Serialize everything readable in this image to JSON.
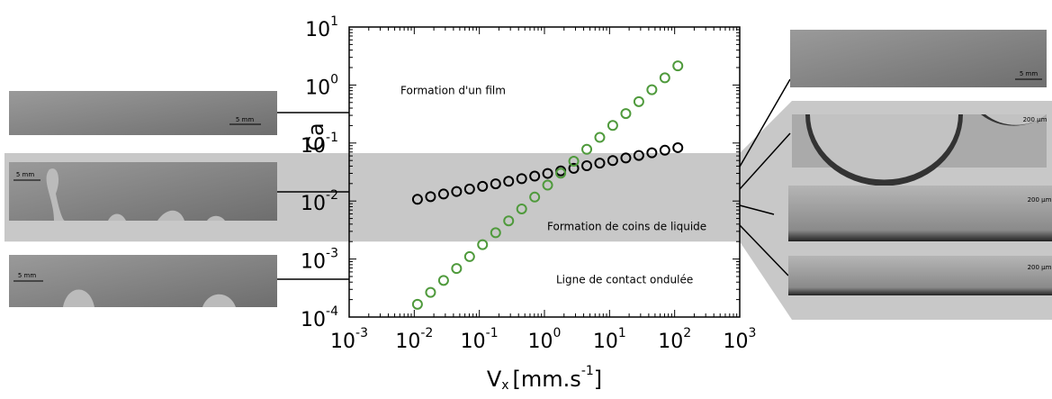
{
  "chart_data": {
    "type": "scatter",
    "xlabel": {
      "main": "V",
      "sub": "x",
      "unit": "[mm.s",
      "sup": "-1",
      "close": "]"
    },
    "ylabel": "Ca",
    "xlog": true,
    "ylog": true,
    "xlim": [
      0.001,
      1000
    ],
    "ylim": [
      0.0001,
      10
    ],
    "xticks": [
      {
        "value": 0.001,
        "label": "10",
        "exp": "-3"
      },
      {
        "value": 0.01,
        "label": "10",
        "exp": "-2"
      },
      {
        "value": 0.1,
        "label": "10",
        "exp": "-1"
      },
      {
        "value": 1,
        "label": "10",
        "exp": "0"
      },
      {
        "value": 10,
        "label": "10",
        "exp": "1"
      },
      {
        "value": 100,
        "label": "10",
        "exp": "2"
      },
      {
        "value": 1000,
        "label": "10",
        "exp": "3"
      }
    ],
    "yticks": [
      {
        "value": 0.0001,
        "label": "10",
        "exp": "-4"
      },
      {
        "value": 0.001,
        "label": "10",
        "exp": "-3"
      },
      {
        "value": 0.01,
        "label": "10",
        "exp": "-2"
      },
      {
        "value": 0.1,
        "label": "10",
        "exp": "-1"
      },
      {
        "value": 1,
        "label": "10",
        "exp": "0"
      },
      {
        "value": 10,
        "label": "10",
        "exp": "1"
      }
    ],
    "band": {
      "ymin": 0.002,
      "ymax": 0.067,
      "color": "#c8c8c8"
    },
    "annotations": [
      "Formation d'un film",
      "Formation de coins de liquide",
      "Ligne de contact ondulée"
    ],
    "x": [
      0.0112,
      0.0178,
      0.0282,
      0.0447,
      0.0708,
      0.112,
      0.178,
      0.282,
      0.447,
      0.708,
      1.12,
      1.78,
      2.82,
      4.47,
      7.08,
      11.2,
      17.8,
      28.2,
      44.7,
      70.8,
      112
    ],
    "series": [
      {
        "color": "#000000",
        "values": [
          0.0107,
          0.0119,
          0.0132,
          0.0146,
          0.0161,
          0.0179,
          0.0198,
          0.0219,
          0.0243,
          0.0269,
          0.0299,
          0.0331,
          0.0366,
          0.0406,
          0.045,
          0.0498,
          0.0552,
          0.0611,
          0.0678,
          0.0751,
          0.0832
        ]
      },
      {
        "color": "#4f9a3c",
        "values": [
          0.000166,
          0.000266,
          0.000428,
          0.000686,
          0.0011,
          0.00177,
          0.00284,
          0.00455,
          0.00731,
          0.0117,
          0.0188,
          0.0302,
          0.0485,
          0.0779,
          0.125,
          0.201,
          0.322,
          0.517,
          0.83,
          1.33,
          2.14
        ]
      }
    ]
  },
  "photos": {
    "left": [
      "5 mm",
      "5 mm",
      "5 mm"
    ],
    "right": [
      "5 mm",
      "200 µm",
      "200 µm",
      "200 µm"
    ]
  }
}
